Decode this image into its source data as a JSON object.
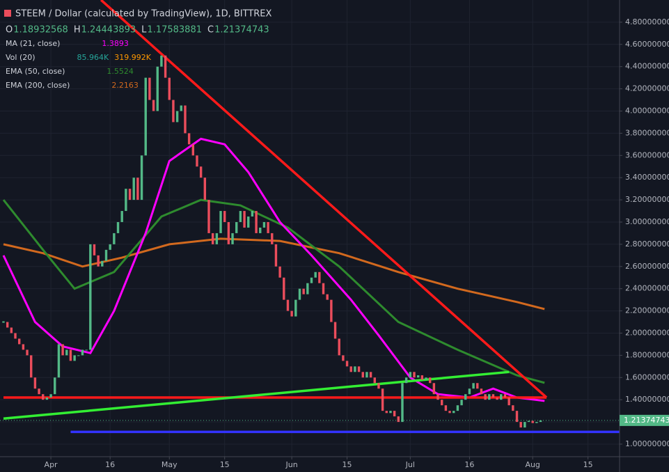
{
  "chart_data": {
    "type": "candlestick",
    "title": "STEEM / Dollar (calculated by TradingView), 1D, BITTREX",
    "ohlc_labels": [
      "O",
      "H",
      "L",
      "C"
    ],
    "ohlc_values": [
      "1.18932568",
      "1.24443893",
      "1.17583881",
      "1.21374743"
    ],
    "indicators": [
      {
        "name": "MA (21, close)",
        "values": [
          "1.3893"
        ],
        "color": "#ff00ff"
      },
      {
        "name": "Vol (20)",
        "values": [
          "85.964K",
          "319.992K"
        ],
        "color": "#26a69a"
      },
      {
        "name": "EMA (50, close)",
        "values": [
          "1.5524"
        ],
        "color": "#2e8b2e"
      },
      {
        "name": "EMA (200, close)",
        "values": [
          "2.2163"
        ],
        "color": "#d2691e"
      }
    ],
    "close": [
      2.1,
      2.05,
      2.0,
      1.95,
      1.9,
      1.85,
      1.8,
      1.6,
      1.5,
      1.45,
      1.4,
      1.42,
      1.45,
      1.6,
      1.9,
      1.8,
      1.85,
      1.75,
      1.8,
      1.8,
      1.85,
      1.85,
      2.8,
      2.7,
      2.6,
      2.65,
      2.75,
      2.8,
      2.9,
      3.0,
      3.1,
      3.3,
      3.2,
      3.4,
      3.2,
      3.6,
      4.3,
      4.1,
      4.0,
      4.4,
      4.5,
      4.3,
      4.1,
      3.9,
      4.0,
      4.05,
      3.8,
      3.7,
      3.6,
      3.5,
      3.4,
      3.2,
      2.9,
      2.8,
      2.9,
      3.1,
      3.0,
      2.8,
      2.9,
      3.0,
      3.1,
      2.95,
      3.05,
      3.1,
      2.9,
      2.95,
      3.0,
      2.9,
      2.8,
      2.6,
      2.5,
      2.3,
      2.2,
      2.15,
      2.3,
      2.4,
      2.35,
      2.45,
      2.5,
      2.55,
      2.45,
      2.35,
      2.3,
      2.1,
      1.95,
      1.8,
      1.75,
      1.7,
      1.65,
      1.7,
      1.65,
      1.6,
      1.65,
      1.6,
      1.55,
      1.5,
      1.3,
      1.28,
      1.3,
      1.25,
      1.2,
      1.55,
      1.6,
      1.65,
      1.6,
      1.62,
      1.58,
      1.6,
      1.55,
      1.45,
      1.4,
      1.35,
      1.3,
      1.28,
      1.3,
      1.35,
      1.4,
      1.45,
      1.5,
      1.55,
      1.5,
      1.45,
      1.4,
      1.45,
      1.42,
      1.4,
      1.45,
      1.42,
      1.35,
      1.3,
      1.2,
      1.15,
      1.2,
      1.21,
      1.19,
      1.2,
      1.21374743
    ],
    "up_color": "#53b987",
    "down_color": "#eb4d5c",
    "lines": [
      {
        "color": "#d2691e",
        "x": [
          0,
          10,
          20,
          30,
          42,
          55,
          70,
          85,
          100,
          115,
          130,
          137
        ],
        "values": [
          2.8,
          2.72,
          2.6,
          2.68,
          2.8,
          2.85,
          2.83,
          2.72,
          2.55,
          2.4,
          2.28,
          2.2163
        ]
      },
      {
        "color": "#2e8b2e",
        "x": [
          0,
          10,
          18,
          28,
          40,
          50,
          60,
          72,
          85,
          100,
          115,
          130,
          137
        ],
        "values": [
          3.2,
          2.75,
          2.4,
          2.55,
          3.05,
          3.2,
          3.15,
          2.95,
          2.6,
          2.1,
          1.85,
          1.62,
          1.5524
        ]
      },
      {
        "color": "#ff00ff",
        "x": [
          0,
          8,
          15,
          22,
          28,
          36,
          42,
          50,
          56,
          62,
          70,
          78,
          88,
          95,
          103,
          110,
          118,
          124,
          130,
          137
        ],
        "values": [
          2.7,
          2.1,
          1.88,
          1.82,
          2.2,
          2.9,
          3.55,
          3.75,
          3.7,
          3.45,
          3.0,
          2.7,
          2.3,
          1.98,
          1.6,
          1.45,
          1.42,
          1.5,
          1.42,
          1.3893
        ]
      },
      {
        "color": "#ff1a1a",
        "x": [
          24.7,
          137.5
        ],
        "values": [
          5.0,
          1.42
        ]
      },
      {
        "color": "#ff1a1a",
        "x": [
          0,
          137.5
        ],
        "values": [
          1.42,
          1.42
        ]
      },
      {
        "color": "#33ee33",
        "x": [
          0,
          128
        ],
        "values": [
          1.23,
          1.65
        ]
      },
      {
        "color": "#3333ff",
        "x": [
          17,
          156
        ],
        "values": [
          1.11,
          1.11
        ]
      }
    ],
    "last_price": 1.21374743,
    "last_price_label": "1.21374743",
    "xlim": [
      0,
      156
    ],
    "xticks": [
      {
        "value": 12,
        "label": "Apr"
      },
      {
        "value": 27,
        "label": "16"
      },
      {
        "value": 42,
        "label": "May"
      },
      {
        "value": 56,
        "label": "15"
      },
      {
        "value": 73,
        "label": "Jun"
      },
      {
        "value": 87,
        "label": "15"
      },
      {
        "value": 103,
        "label": "Jul"
      },
      {
        "value": 118,
        "label": "16"
      },
      {
        "value": 134,
        "label": "Aug"
      },
      {
        "value": 148,
        "label": "15"
      }
    ],
    "ylim": [
      0.887,
      5.0
    ],
    "yticks": [
      {
        "value": 1.0,
        "label": "1.00000000"
      },
      {
        "value": 1.2,
        "label": "1.20000000"
      },
      {
        "value": 1.4,
        "label": "1.40000000"
      },
      {
        "value": 1.6,
        "label": "1.60000000"
      },
      {
        "value": 1.8,
        "label": "1.80000000"
      },
      {
        "value": 2.0,
        "label": "2.00000000"
      },
      {
        "value": 2.2,
        "label": "2.20000000"
      },
      {
        "value": 2.4,
        "label": "2.40000000"
      },
      {
        "value": 2.6,
        "label": "2.60000000"
      },
      {
        "value": 2.8,
        "label": "2.80000000"
      },
      {
        "value": 3.0,
        "label": "3.00000000"
      },
      {
        "value": 3.2,
        "label": "3.20000000"
      },
      {
        "value": 3.4,
        "label": "3.40000000"
      },
      {
        "value": 3.6,
        "label": "3.60000000"
      },
      {
        "value": 3.8,
        "label": "3.80000000"
      },
      {
        "value": 4.0,
        "label": "4.00000000"
      },
      {
        "value": 4.2,
        "label": "4.20000000"
      },
      {
        "value": 4.4,
        "label": "4.40000000"
      },
      {
        "value": 4.6,
        "label": "4.60000000"
      },
      {
        "value": 4.8,
        "label": "4.80000000"
      }
    ],
    "grid": true
  }
}
